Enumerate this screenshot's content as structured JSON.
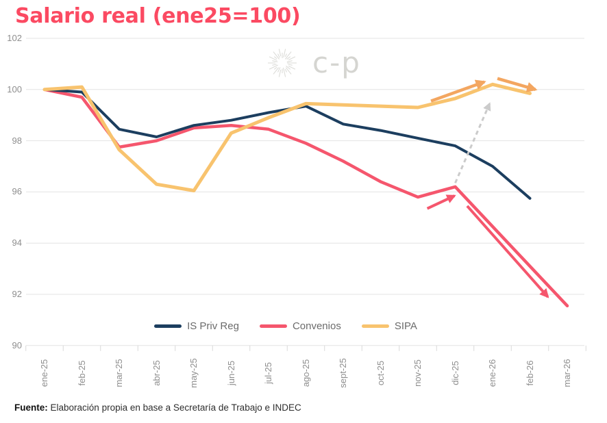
{
  "title": "Salario real (ene25=100)",
  "watermark": "c-p",
  "source": {
    "label": "Fuente:",
    "text": "Elaboración propia en base a Secretaría de Trabajo e INDEC"
  },
  "colors": {
    "title": "#fb4a62",
    "gridline": "#e3e3e3",
    "tick": "#d9d9d9",
    "axis_text": "#8e8e8e",
    "legend_text": "#6b6b6b"
  },
  "chart_data": {
    "type": "line",
    "title": "Salario real (ene25=100)",
    "xlabel": "",
    "ylabel": "",
    "ylim": [
      90,
      102
    ],
    "yticks": [
      102,
      100,
      98,
      96,
      94,
      92,
      90
    ],
    "grid": true,
    "legend_position": "bottom-center",
    "categories": [
      "ene-25",
      "feb-25",
      "mar-25",
      "abr-25",
      "may-25",
      "jun-25",
      "jul-25",
      "ago-25",
      "sept-25",
      "oct-25",
      "nov-25",
      "dic-25",
      "ene-26",
      "feb-26",
      "mar-26"
    ],
    "series": [
      {
        "name": "IS Priv Reg",
        "color": "#1c3e5f",
        "stroke_width": 4,
        "values": [
          100,
          99.9,
          98.45,
          98.15,
          98.6,
          98.8,
          99.1,
          99.35,
          98.65,
          98.4,
          98.1,
          97.8,
          97.0,
          95.75,
          null
        ]
      },
      {
        "name": "Convenios",
        "color": "#f5566d",
        "stroke_width": 4.5,
        "values": [
          100,
          99.7,
          97.75,
          98.0,
          98.5,
          98.6,
          98.45,
          97.9,
          97.2,
          96.4,
          95.8,
          96.2,
          94.65,
          93.1,
          91.55
        ]
      },
      {
        "name": "SIPA",
        "color": "#f8c36e",
        "stroke_width": 5,
        "values": [
          100,
          100.1,
          97.65,
          96.3,
          96.05,
          98.3,
          98.9,
          99.45,
          99.4,
          99.35,
          99.3,
          99.65,
          100.2,
          99.85,
          null
        ]
      }
    ],
    "annotations": [
      {
        "name": "sipa-rise-arrow",
        "color": "#f3a660",
        "dashed": false,
        "width": 4.5,
        "from": {
          "i": 10.35,
          "v": 99.55
        },
        "to": {
          "i": 11.78,
          "v": 100.3
        }
      },
      {
        "name": "sipa-continue-arrow",
        "color": "#f3a660",
        "dashed": false,
        "width": 4.5,
        "from": {
          "i": 12.13,
          "v": 100.43
        },
        "to": {
          "i": 13.15,
          "v": 100.0
        }
      },
      {
        "name": "convenios-to-sipa-jump-arrow",
        "color": "#cbcbcb",
        "dashed": true,
        "width": 3,
        "from": {
          "i": 11.0,
          "v": 96.35
        },
        "to": {
          "i": 11.92,
          "v": 99.45
        }
      },
      {
        "name": "convenios-uptick-arrow",
        "color": "#f5566d",
        "dashed": false,
        "width": 4,
        "from": {
          "i": 10.25,
          "v": 95.35
        },
        "to": {
          "i": 10.98,
          "v": 95.85
        }
      },
      {
        "name": "convenios-plunge-arrow",
        "color": "#f5566d",
        "dashed": false,
        "width": 4,
        "from": {
          "i": 11.32,
          "v": 95.45
        },
        "to": {
          "i": 13.48,
          "v": 91.9
        }
      }
    ]
  }
}
